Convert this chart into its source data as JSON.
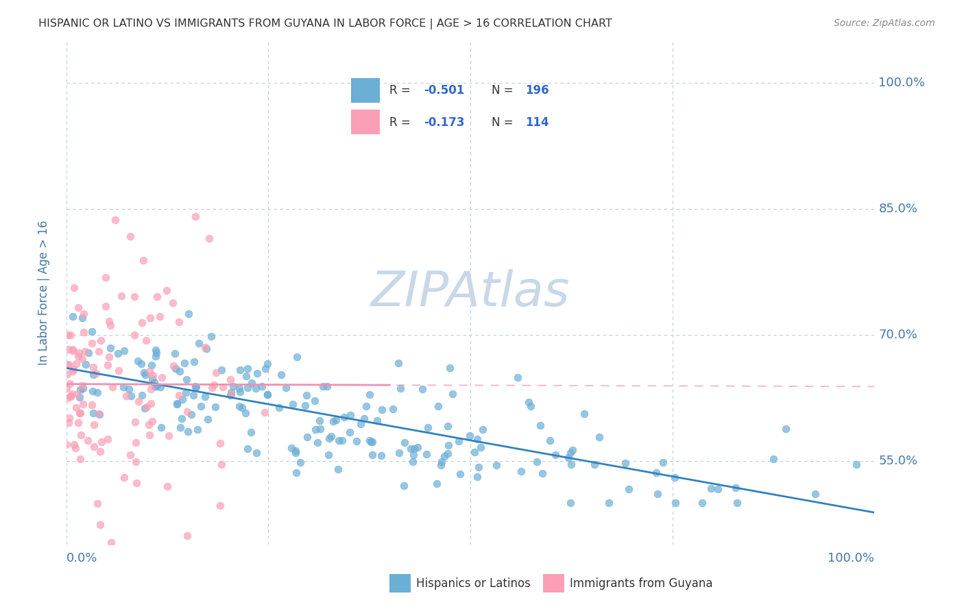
{
  "title": "HISPANIC OR LATINO VS IMMIGRANTS FROM GUYANA IN LABOR FORCE | AGE > 16 CORRELATION CHART",
  "source": "Source: ZipAtlas.com",
  "ylabel": "In Labor Force | Age > 16",
  "right_ytick_labels": [
    "100.0%",
    "85.0%",
    "70.0%",
    "55.0%"
  ],
  "right_ytick_values": [
    1.0,
    0.85,
    0.7,
    0.55
  ],
  "bottom_xtick_labels": [
    "0.0%",
    "100.0%"
  ],
  "R_blue": -0.501,
  "N_blue": 196,
  "R_pink": -0.173,
  "N_pink": 114,
  "blue_color": "#6baed6",
  "pink_color": "#fa9fb5",
  "blue_line_color": "#3182bd",
  "pink_line_color": "#f48fb1",
  "watermark_color": "#c8d8e8",
  "title_color": "#333333",
  "axis_label_color": "#4477aa",
  "tick_label_color": "#4477aa",
  "background_color": "#ffffff",
  "legend_text_color": "#3366cc",
  "seed": 42,
  "x_range": [
    0.0,
    1.0
  ],
  "y_range": [
    0.45,
    1.05
  ]
}
